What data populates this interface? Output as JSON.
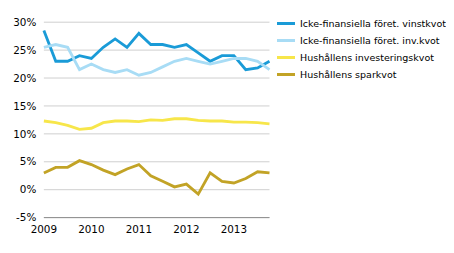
{
  "chart_data": {
    "type": "line",
    "categories": [
      "2009",
      null,
      null,
      null,
      "2010",
      null,
      null,
      null,
      "2011",
      null,
      null,
      null,
      "2012",
      null,
      null,
      null,
      "2013",
      null,
      null,
      null
    ],
    "series": [
      {
        "name": "Icke-finansiella föret. vinstkvot",
        "color": "#1a9bd7",
        "values": [
          28.5,
          23,
          23,
          24,
          23.5,
          25.5,
          27,
          25.5,
          28,
          26,
          26,
          25.5,
          26,
          24.5,
          23,
          24,
          24,
          21.5,
          21.8,
          23
        ]
      },
      {
        "name": "Icke-finansiella föret. inv.kvot",
        "color": "#a8dcf5",
        "values": [
          25.5,
          26,
          25.5,
          21.5,
          22.5,
          21.5,
          21,
          21.5,
          20.5,
          21,
          22,
          23,
          23.5,
          23,
          22.5,
          23,
          23.5,
          23.5,
          23,
          21.5
        ]
      },
      {
        "name": "Hushållens investeringskvot",
        "color": "#f7e64a",
        "values": [
          12.3,
          12,
          11.5,
          10.8,
          11,
          12,
          12.3,
          12.3,
          12.2,
          12.5,
          12.4,
          12.7,
          12.7,
          12.4,
          12.3,
          12.3,
          12.1,
          12.1,
          12,
          11.8
        ]
      },
      {
        "name": "Hushållens sparkvot",
        "color": "#c2a326",
        "values": [
          3,
          4,
          4,
          5.2,
          4.5,
          3.5,
          2.7,
          3.7,
          4.5,
          2.5,
          1.5,
          0.5,
          1,
          -0.8,
          3,
          1.5,
          1.2,
          2,
          3.2,
          3
        ]
      }
    ],
    "ylim": [
      -5,
      30
    ],
    "yticks": [
      {
        "value": -5,
        "label": "-5%"
      },
      {
        "value": 0,
        "label": "0%"
      },
      {
        "value": 5,
        "label": "5%"
      },
      {
        "value": 10,
        "label": "10%"
      },
      {
        "value": 15,
        "label": "15%"
      },
      {
        "value": 20,
        "label": "20%"
      },
      {
        "value": 25,
        "label": "25%"
      },
      {
        "value": 30,
        "label": "30%"
      }
    ],
    "grid": true,
    "legend": "right"
  }
}
